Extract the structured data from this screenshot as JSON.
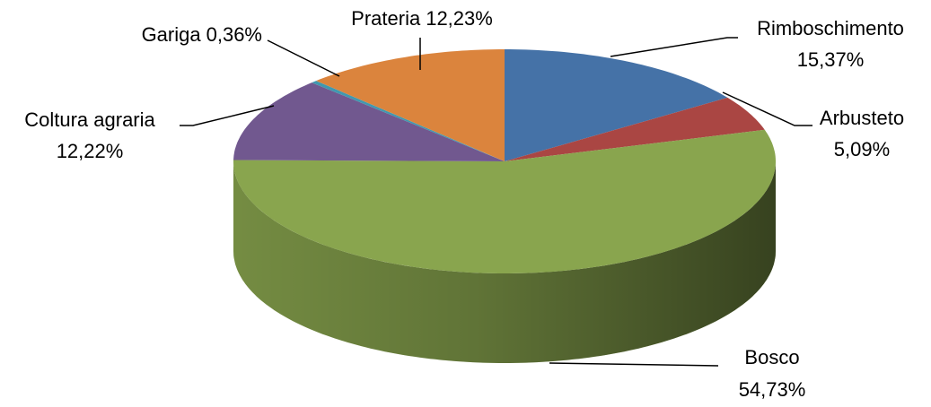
{
  "chart_data": {
    "type": "pie3d",
    "categories": [
      "Rimboschimento",
      "Arbusteto",
      "Bosco",
      "Coltura agraria",
      "Gariga",
      "Prateria"
    ],
    "values": [
      15.37,
      5.09,
      54.73,
      12.22,
      0.36,
      12.23
    ],
    "value_labels": [
      "15,37%",
      "5,09%",
      "54,73%",
      "12,22%",
      "0,36%",
      "12,23%"
    ],
    "colors": [
      "#4572a7",
      "#aa4643",
      "#89a54e",
      "#71588f",
      "#4198af",
      "#db843d"
    ]
  }
}
